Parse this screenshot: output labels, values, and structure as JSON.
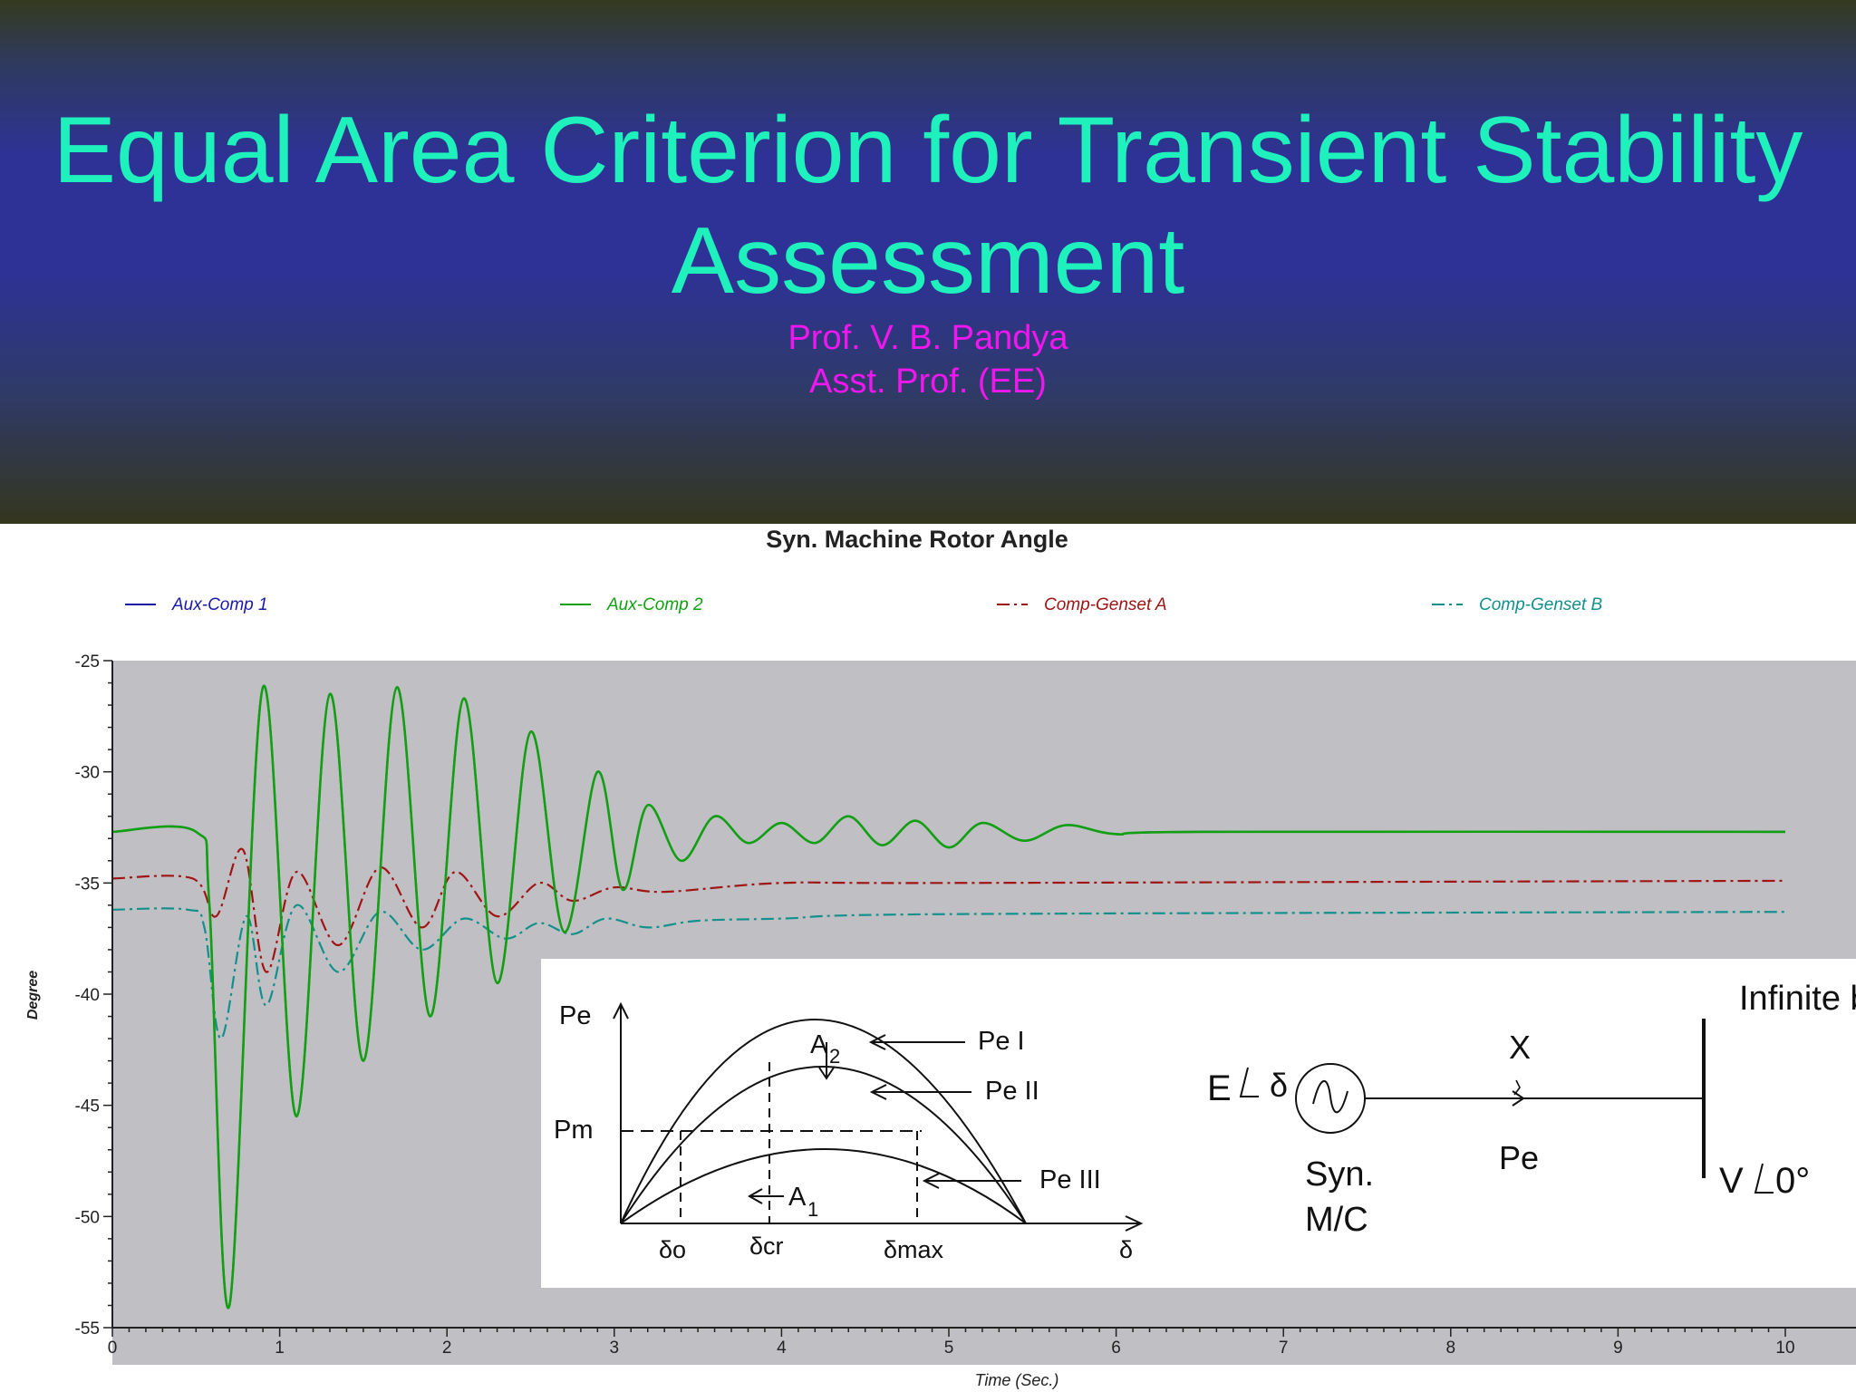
{
  "slide": {
    "title_line1": "Equal Area Criterion for Transient Stability",
    "title_line2": "Assessment",
    "author_name": "Prof. V. B. Pandya",
    "author_role": "Asst. Prof. (EE)"
  },
  "colors": {
    "title": "#1ef1bc",
    "author": "#f016ee",
    "plot_bg": "#c0c0c4",
    "aux1": "#1a1aa8",
    "aux2": "#12a012",
    "gensetA": "#a01414",
    "gensetB": "#12908c"
  },
  "chart_data": {
    "type": "line",
    "title": "Syn. Machine Rotor Angle",
    "xlabel": "Time (Sec.)",
    "ylabel": "Degree",
    "xlim": [
      0,
      10
    ],
    "ylim": [
      -55,
      -25
    ],
    "x_ticks": [
      "0",
      "1",
      "2",
      "3",
      "4",
      "5",
      "6",
      "7",
      "8",
      "9",
      "10"
    ],
    "y_ticks": [
      "-25",
      "-30",
      "-35",
      "-40",
      "-45",
      "-50",
      "-55"
    ],
    "grid": false,
    "legend_position": "top",
    "series": [
      {
        "name": "Aux-Comp 1",
        "style": "solid",
        "points": [
          [
            0,
            -32.7
          ],
          [
            0.5,
            -32.7
          ],
          [
            0.58,
            -36
          ],
          [
            0.7,
            -54
          ],
          [
            0.9,
            -26.2
          ],
          [
            1.1,
            -45.5
          ],
          [
            1.3,
            -26.5
          ],
          [
            1.5,
            -43
          ],
          [
            1.7,
            -26.2
          ],
          [
            1.9,
            -41
          ],
          [
            2.1,
            -26.7
          ],
          [
            2.3,
            -39.5
          ],
          [
            2.5,
            -28.2
          ],
          [
            2.7,
            -37.2
          ],
          [
            2.9,
            -30
          ],
          [
            3.05,
            -35.3
          ],
          [
            3.2,
            -31.5
          ],
          [
            3.4,
            -34
          ],
          [
            3.6,
            -32
          ],
          [
            3.8,
            -33.2
          ],
          [
            4.0,
            -32.3
          ],
          [
            4.2,
            -33.2
          ],
          [
            4.4,
            -32
          ],
          [
            4.6,
            -33.3
          ],
          [
            4.8,
            -32.2
          ],
          [
            5.0,
            -33.4
          ],
          [
            5.2,
            -32.3
          ],
          [
            5.45,
            -33.1
          ],
          [
            5.7,
            -32.4
          ],
          [
            6.0,
            -32.8
          ],
          [
            6.5,
            -32.7
          ],
          [
            10,
            -32.7
          ]
        ]
      },
      {
        "name": "Aux-Comp 2",
        "style": "solid",
        "points": [
          [
            0,
            -32.7
          ],
          [
            0.5,
            -32.7
          ],
          [
            0.58,
            -36
          ],
          [
            0.7,
            -54
          ],
          [
            0.9,
            -26.2
          ],
          [
            1.1,
            -45.5
          ],
          [
            1.3,
            -26.5
          ],
          [
            1.5,
            -43
          ],
          [
            1.7,
            -26.2
          ],
          [
            1.9,
            -41
          ],
          [
            2.1,
            -26.7
          ],
          [
            2.3,
            -39.5
          ],
          [
            2.5,
            -28.2
          ],
          [
            2.7,
            -37.2
          ],
          [
            2.9,
            -30
          ],
          [
            3.05,
            -35.3
          ],
          [
            3.2,
            -31.5
          ],
          [
            3.4,
            -34
          ],
          [
            3.6,
            -32
          ],
          [
            3.8,
            -33.2
          ],
          [
            4.0,
            -32.3
          ],
          [
            4.2,
            -33.2
          ],
          [
            4.4,
            -32
          ],
          [
            4.6,
            -33.3
          ],
          [
            4.8,
            -32.2
          ],
          [
            5.0,
            -33.4
          ],
          [
            5.2,
            -32.3
          ],
          [
            5.45,
            -33.1
          ],
          [
            5.7,
            -32.4
          ],
          [
            6.0,
            -32.8
          ],
          [
            6.5,
            -32.7
          ],
          [
            10,
            -32.7
          ]
        ]
      },
      {
        "name": "Comp-Genset A",
        "style": "dashdot",
        "points": [
          [
            0,
            -34.8
          ],
          [
            0.48,
            -34.8
          ],
          [
            0.62,
            -36.5
          ],
          [
            0.78,
            -33.5
          ],
          [
            0.92,
            -39
          ],
          [
            1.1,
            -34.5
          ],
          [
            1.35,
            -37.8
          ],
          [
            1.6,
            -34.3
          ],
          [
            1.85,
            -37
          ],
          [
            2.05,
            -34.5
          ],
          [
            2.3,
            -36.5
          ],
          [
            2.55,
            -35
          ],
          [
            2.75,
            -35.8
          ],
          [
            3,
            -35.2
          ],
          [
            3.3,
            -35.4
          ],
          [
            4,
            -35
          ],
          [
            5,
            -35
          ],
          [
            10,
            -34.9
          ]
        ]
      },
      {
        "name": "Comp-Genset B",
        "style": "dashdot",
        "points": [
          [
            0,
            -36.2
          ],
          [
            0.45,
            -36.2
          ],
          [
            0.55,
            -37
          ],
          [
            0.65,
            -42
          ],
          [
            0.8,
            -36.5
          ],
          [
            0.92,
            -40.5
          ],
          [
            1.1,
            -36
          ],
          [
            1.35,
            -39
          ],
          [
            1.6,
            -36.3
          ],
          [
            1.85,
            -38
          ],
          [
            2.1,
            -36.6
          ],
          [
            2.35,
            -37.5
          ],
          [
            2.55,
            -36.8
          ],
          [
            2.75,
            -37.3
          ],
          [
            2.95,
            -36.6
          ],
          [
            3.2,
            -37
          ],
          [
            3.5,
            -36.7
          ],
          [
            4,
            -36.6
          ],
          [
            5,
            -36.4
          ],
          [
            10,
            -36.3
          ]
        ]
      }
    ]
  },
  "inset": {
    "axis_y_label": "Pe",
    "pm_label": "Pm",
    "curve_labels": [
      "Pe I",
      "Pe II",
      "Pe III"
    ],
    "area_labels": [
      "A",
      "2",
      "A",
      "1"
    ],
    "delta_labels": [
      "δo",
      "δcr",
      "δmax",
      "δ"
    ],
    "e_label": "E",
    "e_angle_label": "δ",
    "x_label": "X",
    "pe_label": "Pe",
    "bus_label": "Infinite bus",
    "v_label": "V",
    "v_angle_label": "0°",
    "syn_label_1": "Syn.",
    "syn_label_2": "M/C"
  }
}
